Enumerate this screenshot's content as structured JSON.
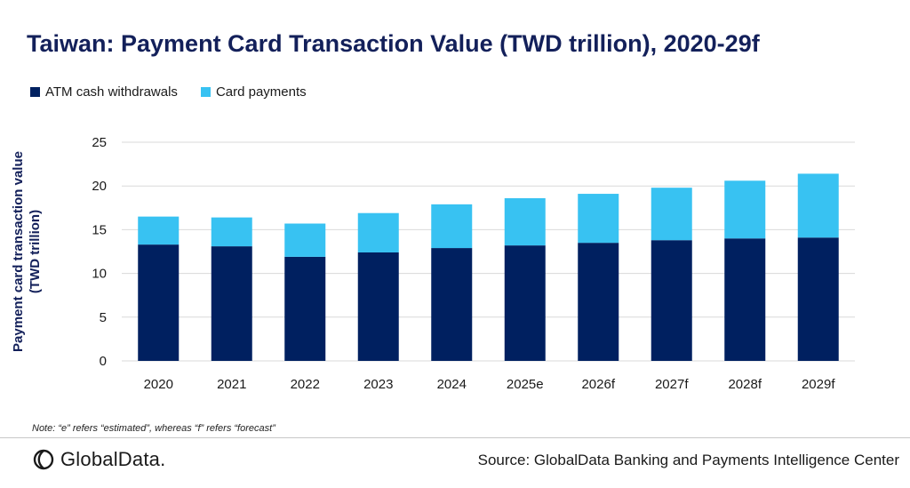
{
  "header": {
    "title": "Taiwan: Payment Card Transaction Value (TWD trillion), 2020-29f"
  },
  "legend": {
    "items": [
      "ATM cash withdrawals",
      "Card payments"
    ]
  },
  "footer": {
    "note": "Note: “e” refers “estimated”, whereas “f” refers “forecast”",
    "brand": "GlobalData.",
    "source": "Source: GlobalData Banking and Payments Intelligence Center"
  },
  "colors": {
    "atm": "#002060",
    "card": "#38c2f2",
    "grid": "#d9d9d9",
    "text": "#1a1a1a",
    "title": "#13205a"
  },
  "icons": {
    "brand_logo": "globaldata-logo-icon"
  },
  "chart_data": {
    "type": "bar",
    "stacked": true,
    "title": "Taiwan: Payment Card Transaction Value (TWD trillion), 2020-29f",
    "xlabel": "",
    "ylabel_lines": [
      "Payment card transaction value",
      "(TWD trillion)"
    ],
    "categories": [
      "2020",
      "2021",
      "2022",
      "2023",
      "2024",
      "2025e",
      "2026f",
      "2027f",
      "2028f",
      "2029f"
    ],
    "series": [
      {
        "name": "ATM cash withdrawals",
        "values": [
          13.3,
          13.1,
          11.9,
          12.4,
          12.9,
          13.2,
          13.5,
          13.8,
          14.0,
          14.1
        ]
      },
      {
        "name": "Card payments",
        "values": [
          3.2,
          3.3,
          3.8,
          4.5,
          5.0,
          5.4,
          5.6,
          6.0,
          6.6,
          7.3
        ]
      }
    ],
    "ylim": [
      0,
      25
    ],
    "yticks": [
      "0",
      "5",
      "10",
      "15",
      "20",
      "25"
    ],
    "grid": true,
    "legend_position": "top-left"
  }
}
